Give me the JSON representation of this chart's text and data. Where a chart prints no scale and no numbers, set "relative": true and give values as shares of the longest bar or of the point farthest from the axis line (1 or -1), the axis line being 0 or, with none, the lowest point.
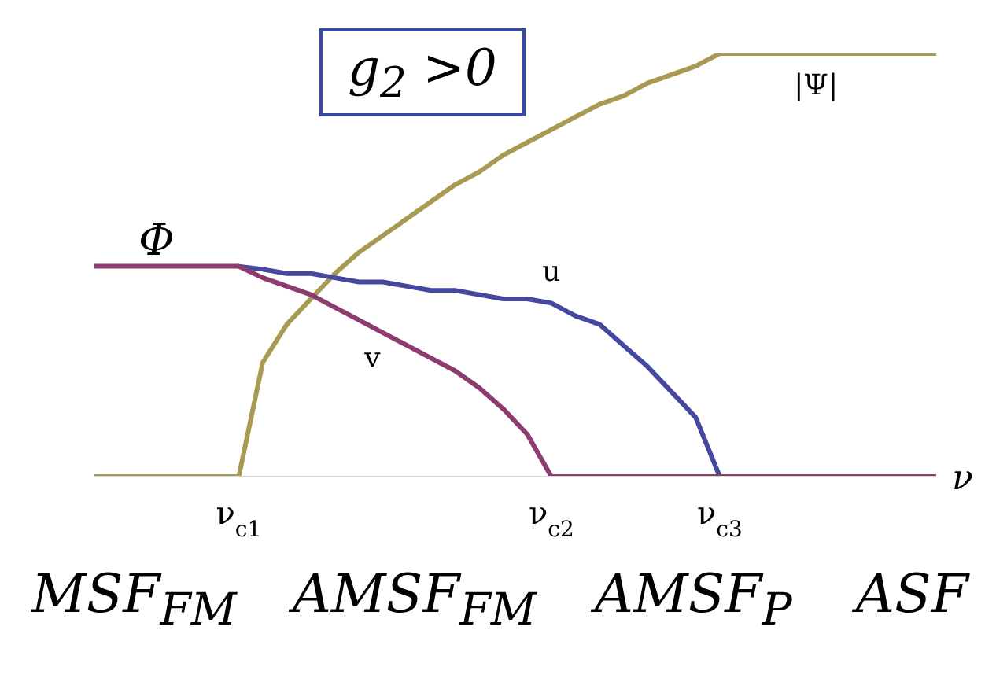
{
  "chart_data": {
    "type": "line",
    "relative": true,
    "xlabel": "ν",
    "categories": [
      null,
      null,
      null,
      null,
      null,
      null,
      "ν$_{c1}$",
      null,
      null,
      null,
      null,
      null,
      null,
      null,
      null,
      null,
      null,
      null,
      null,
      "ν$_{c2}$",
      null,
      null,
      null,
      null,
      null,
      null,
      "ν$_{c3}$",
      null,
      null,
      null,
      null,
      null,
      null,
      null,
      null,
      null
    ],
    "series": [
      {
        "name": "|Ψ|",
        "color": "#a89a52",
        "values": [
          0,
          0,
          0,
          0,
          0,
          0,
          0,
          0.27,
          0.36,
          0.42,
          0.48,
          0.53,
          0.57,
          0.61,
          0.65,
          0.69,
          0.72,
          0.76,
          0.79,
          0.82,
          0.85,
          0.88,
          0.9,
          0.93,
          0.95,
          0.97,
          1,
          1,
          1,
          1,
          1,
          1,
          1,
          1,
          1,
          1
        ]
      },
      {
        "name": "u",
        "color": "#44489e",
        "values": [
          null,
          null,
          null,
          null,
          null,
          null,
          0.497,
          0.49,
          0.48,
          0.48,
          0.47,
          0.46,
          0.46,
          0.45,
          0.44,
          0.44,
          0.43,
          0.42,
          0.42,
          0.41,
          0.38,
          0.36,
          0.31,
          0.26,
          0.2,
          0.14,
          0,
          null,
          null,
          null,
          null,
          null,
          null,
          null,
          null,
          null
        ]
      },
      {
        "name": "v",
        "color": "#8c3d6e",
        "values": [
          0.497,
          0.497,
          0.497,
          0.497,
          0.497,
          0.497,
          0.497,
          0.47,
          0.45,
          0.43,
          0.4,
          0.37,
          0.34,
          0.31,
          0.28,
          0.25,
          0.21,
          0.16,
          0.1,
          0,
          0,
          0,
          0,
          0,
          0,
          0,
          0,
          0,
          0,
          0,
          0,
          0,
          0,
          0,
          0,
          0
        ]
      }
    ],
    "annotations": [
      "g$_{2}$ >0",
      "MSF$_{FM}$",
      "AMSF$_{FM}$",
      "AMSF$_{P}$",
      "ASF",
      "Φ"
    ],
    "legend": false,
    "grid": false,
    "marker": "none",
    "line_style": "solid"
  }
}
